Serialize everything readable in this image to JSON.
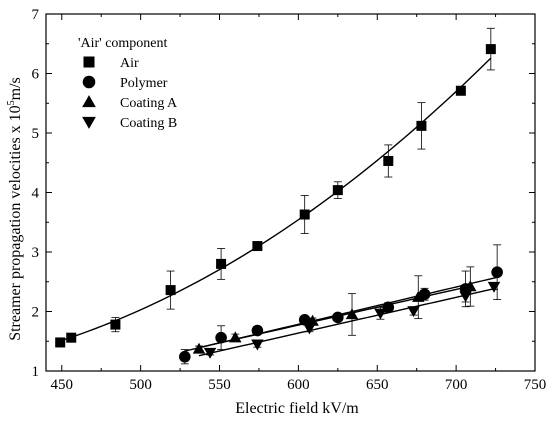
{
  "chart_data": {
    "type": "scatter",
    "xlabel": "Electric field kV/m",
    "ylabel_main": "Streamer propagation velocities x 10",
    "ylabel_exp": "5",
    "ylabel_unit": "m/s",
    "xlim": [
      440,
      750
    ],
    "ylim": [
      1,
      7
    ],
    "xticks": [
      450,
      500,
      550,
      600,
      650,
      700,
      750
    ],
    "yticks": [
      1,
      2,
      3,
      4,
      5,
      6,
      7
    ],
    "legend": {
      "title": "'Air' component",
      "placement": "top-left"
    },
    "series": [
      {
        "name": "Air",
        "marker": "square",
        "fit": {
          "type": "quadratic",
          "x_range": [
            449,
            722
          ]
        },
        "points": [
          {
            "x": 449,
            "y": 1.48,
            "err": 0.07
          },
          {
            "x": 456,
            "y": 1.56,
            "err": 0.06
          },
          {
            "x": 484,
            "y": 1.78,
            "err": 0.12
          },
          {
            "x": 519,
            "y": 2.36,
            "err": 0.32
          },
          {
            "x": 551,
            "y": 2.8,
            "err": 0.26
          },
          {
            "x": 574,
            "y": 3.1,
            "err": 0.05
          },
          {
            "x": 604,
            "y": 3.63,
            "err": 0.32
          },
          {
            "x": 625,
            "y": 4.04,
            "err": 0.14
          },
          {
            "x": 657,
            "y": 4.53,
            "err": 0.27
          },
          {
            "x": 678,
            "y": 5.12,
            "err": 0.39
          },
          {
            "x": 703,
            "y": 5.71,
            "err": 0.04
          },
          {
            "x": 722,
            "y": 6.41,
            "err": 0.35
          }
        ]
      },
      {
        "name": "Polymer",
        "marker": "circle",
        "fit": {
          "type": "linear",
          "x_range": [
            528,
            726
          ]
        },
        "points": [
          {
            "x": 528,
            "y": 1.24,
            "err": 0.12
          },
          {
            "x": 551,
            "y": 1.56,
            "err": 0.2
          },
          {
            "x": 574,
            "y": 1.68,
            "err": 0.07
          },
          {
            "x": 604,
            "y": 1.86,
            "err": 0.06
          },
          {
            "x": 625,
            "y": 1.9,
            "err": 0.06
          },
          {
            "x": 657,
            "y": 2.07,
            "err": 0.08
          },
          {
            "x": 680,
            "y": 2.29,
            "err": 0.1
          },
          {
            "x": 706,
            "y": 2.38,
            "err": 0.3
          },
          {
            "x": 726,
            "y": 2.66,
            "err": 0.46
          }
        ]
      },
      {
        "name": "Coating A",
        "marker": "triangle-up",
        "fit": {
          "type": "linear",
          "x_range": [
            537,
            709
          ]
        },
        "points": [
          {
            "x": 537,
            "y": 1.37,
            "err": 0.05
          },
          {
            "x": 560,
            "y": 1.56,
            "err": 0.06
          },
          {
            "x": 609,
            "y": 1.84,
            "err": 0.05
          },
          {
            "x": 634,
            "y": 1.95,
            "err": 0.35
          },
          {
            "x": 676,
            "y": 2.24,
            "err": 0.36
          },
          {
            "x": 709,
            "y": 2.42,
            "err": 0.33
          }
        ]
      },
      {
        "name": "Coating B",
        "marker": "triangle-down",
        "fit": {
          "type": "linear",
          "x_range": [
            537,
            724
          ]
        },
        "points": [
          {
            "x": 544,
            "y": 1.31,
            "err": 0.04
          },
          {
            "x": 574,
            "y": 1.45,
            "err": 0.05
          },
          {
            "x": 607,
            "y": 1.72,
            "err": 0.06
          },
          {
            "x": 652,
            "y": 1.97,
            "err": 0.1
          },
          {
            "x": 673,
            "y": 2.01,
            "err": 0.07
          },
          {
            "x": 706,
            "y": 2.26,
            "err": 0.1
          },
          {
            "x": 724,
            "y": 2.42,
            "err": 0.05
          }
        ]
      }
    ]
  }
}
